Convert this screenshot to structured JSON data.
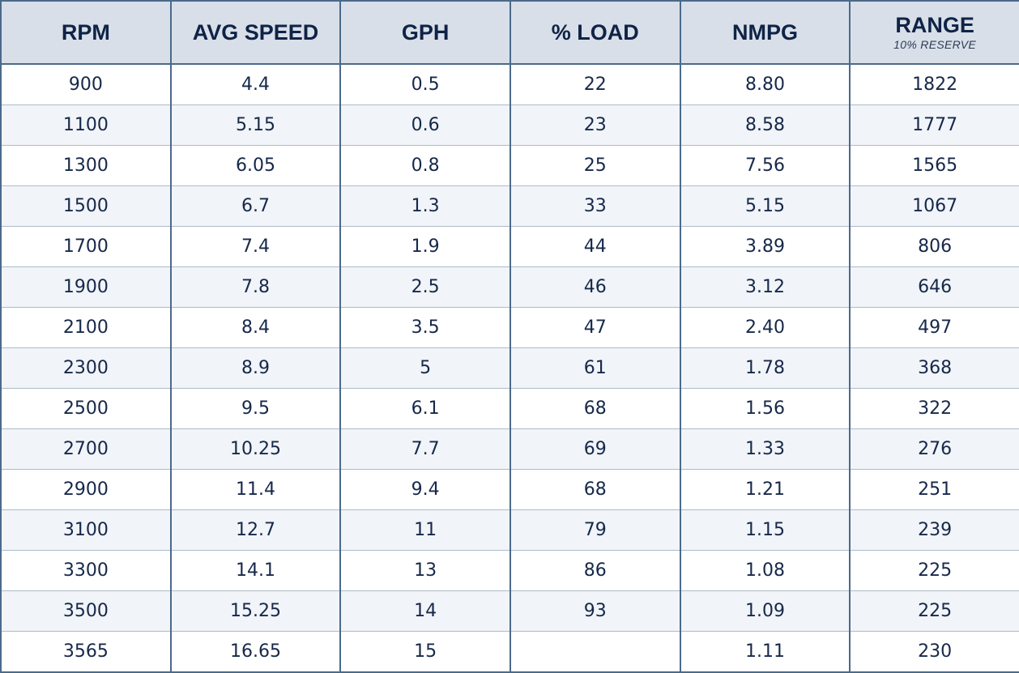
{
  "chart_data": {
    "type": "table",
    "columns": [
      {
        "label": "RPM",
        "sub": ""
      },
      {
        "label": "AVG SPEED",
        "sub": ""
      },
      {
        "label": "GPH",
        "sub": ""
      },
      {
        "label": "% LOAD",
        "sub": ""
      },
      {
        "label": "NMPG",
        "sub": ""
      },
      {
        "label": "RANGE",
        "sub": "10% RESERVE"
      }
    ],
    "rows": [
      [
        "900",
        "4.4",
        "0.5",
        "22",
        "8.80",
        "1822"
      ],
      [
        "1100",
        "5.15",
        "0.6",
        "23",
        "8.58",
        "1777"
      ],
      [
        "1300",
        "6.05",
        "0.8",
        "25",
        "7.56",
        "1565"
      ],
      [
        "1500",
        "6.7",
        "1.3",
        "33",
        "5.15",
        "1067"
      ],
      [
        "1700",
        "7.4",
        "1.9",
        "44",
        "3.89",
        "806"
      ],
      [
        "1900",
        "7.8",
        "2.5",
        "46",
        "3.12",
        "646"
      ],
      [
        "2100",
        "8.4",
        "3.5",
        "47",
        "2.40",
        "497"
      ],
      [
        "2300",
        "8.9",
        "5",
        "61",
        "1.78",
        "368"
      ],
      [
        "2500",
        "9.5",
        "6.1",
        "68",
        "1.56",
        "322"
      ],
      [
        "2700",
        "10.25",
        "7.7",
        "69",
        "1.33",
        "276"
      ],
      [
        "2900",
        "11.4",
        "9.4",
        "68",
        "1.21",
        "251"
      ],
      [
        "3100",
        "12.7",
        "11",
        "79",
        "1.15",
        "239"
      ],
      [
        "3300",
        "14.1",
        "13",
        "86",
        "1.08",
        "225"
      ],
      [
        "3500",
        "15.25",
        "14",
        "93",
        "1.09",
        "225"
      ],
      [
        "3565",
        "16.65",
        "15",
        "",
        "1.11",
        "230"
      ]
    ]
  }
}
